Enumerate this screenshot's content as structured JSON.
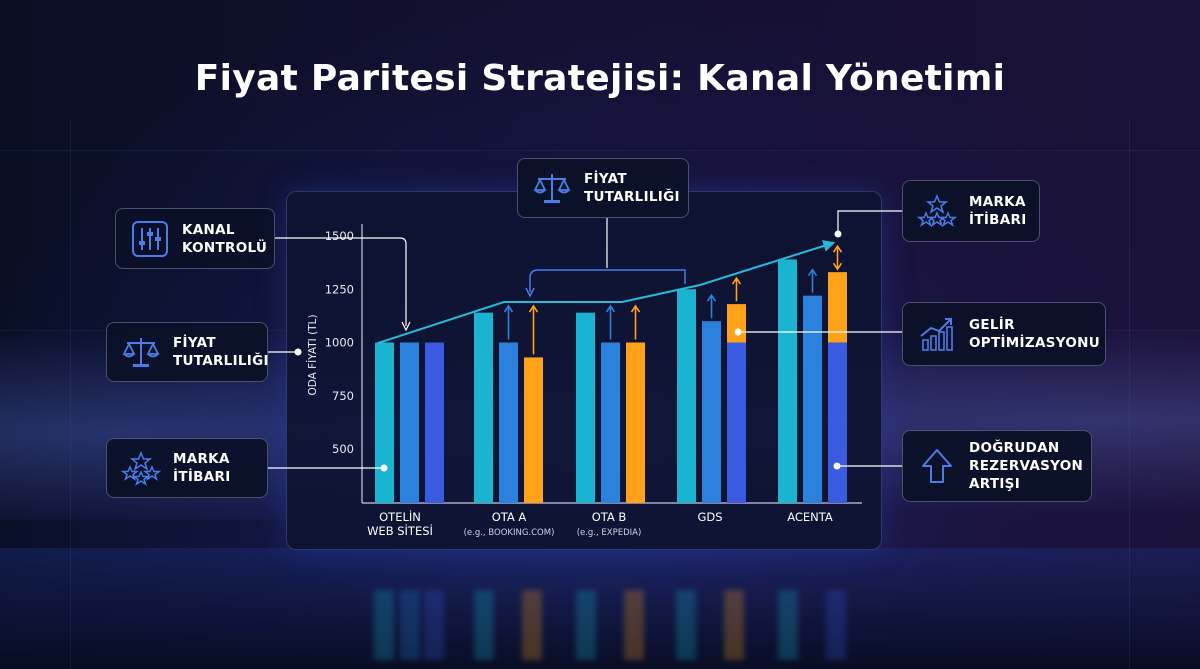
{
  "title": "Fiyat Paritesi Stratejisi: Kanal Yönetimi",
  "callouts": {
    "kanal_kontrolu": "KANAL\nKONTROLÜ",
    "fiyat_tutarliligi_left": "FİYAT\nTUTARLILIĞI",
    "marka_itibari_left": "MARKA\nİTİBARI",
    "fiyat_tutarliligi_top": "FİYAT\nTUTARLILIĞI",
    "marka_itibari_right": "MARKA\nİTİBARI",
    "gelir_optimizasyonu": "GELİR\nOPTİMİZASYONU",
    "dogrudan_rezervasyon": "DOĞRUDAN\nREZERVASYON\nARTIŞI"
  },
  "colors": {
    "teal": "#1ab4d0",
    "blue": "#2a82dc",
    "indigo": "#3a5be0",
    "orange": "#ffa21a",
    "trend": "#2bb8d8"
  },
  "chart_data": {
    "type": "bar",
    "ylabel": "ODA FİYATI (TL)",
    "yticks": [
      500,
      750,
      1000,
      1250,
      1500
    ],
    "ylim": [
      250,
      1550
    ],
    "categories": [
      {
        "label": "OTELİN\nWEB SİTESİ",
        "sub": ""
      },
      {
        "label": "OTA A",
        "sub": "(e.g., BOOKING.COM)"
      },
      {
        "label": "OTA B",
        "sub": "(e.g., EXPEDIA)"
      },
      {
        "label": "GDS",
        "sub": ""
      },
      {
        "label": "ACENTA",
        "sub": ""
      }
    ],
    "groups": [
      {
        "bars": [
          {
            "value": 1000,
            "color": "teal"
          },
          {
            "value": 1000,
            "color": "blue"
          },
          {
            "value": 1000,
            "color": "indigo"
          }
        ]
      },
      {
        "bars": [
          {
            "value": 1140,
            "color": "teal"
          },
          {
            "value": 1000,
            "color": "blue"
          },
          {
            "value": 930,
            "color": "orange"
          }
        ]
      },
      {
        "bars": [
          {
            "value": 1140,
            "color": "teal"
          },
          {
            "value": 1000,
            "color": "blue"
          },
          {
            "value": 1000,
            "color": "orange"
          }
        ]
      },
      {
        "bars": [
          {
            "value": 1250,
            "color": "teal"
          },
          {
            "value": 1100,
            "color": "blue"
          },
          {
            "value": 1180,
            "color": "indigo",
            "top_value": 1180,
            "base_value": 1000
          }
        ]
      },
      {
        "bars": [
          {
            "value": 1390,
            "color": "teal"
          },
          {
            "value": 1220,
            "color": "blue"
          },
          {
            "value": 1330,
            "color": "indigo",
            "top_value": 1330,
            "base_value": 1000
          }
        ]
      }
    ],
    "trend_line": [
      1000,
      1180,
      1180,
      1280,
      1460
    ]
  }
}
